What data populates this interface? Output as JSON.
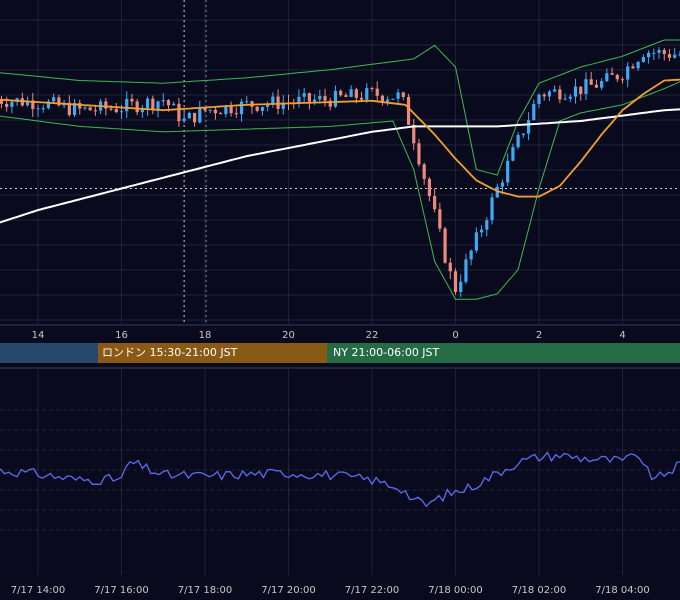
{
  "colors": {
    "background": "#0a0a1e",
    "grid": "#1e2436",
    "candle_up": "#3fa9f5",
    "candle_down": "#ef8a7a",
    "bollinger": "#3fb950",
    "ma_short": "#f0a030",
    "ma_long": "#ffffff",
    "oscillator": "#5b6cf0",
    "session_tokyo": "#27496d",
    "session_london": "#8a5a14",
    "session_ny": "#256b45"
  },
  "sessions": [
    {
      "label": "",
      "color_key": "session_tokyo"
    },
    {
      "label": "ロンドン 15:30-21:00 JST",
      "color_key": "session_london"
    },
    {
      "label": "NY 21:00-06:00 JST",
      "color_key": "session_ny"
    }
  ],
  "chart_data": [
    {
      "type": "candlestick",
      "x_unit": "hour",
      "x_ticks": [
        14,
        16,
        18,
        20,
        22,
        0,
        2,
        4
      ],
      "x_tick_labels": [
        "14",
        "16",
        "18",
        "20",
        "22",
        "0",
        "2",
        "4"
      ],
      "x_range": [
        13,
        30.2
      ],
      "y_range": [
        0,
        100
      ],
      "y_scale": "relative price level (no price axis printed)",
      "grid": true,
      "series": [
        {
          "kind": "price",
          "points": [
            [
              13,
              78
            ],
            [
              14,
              77
            ],
            [
              15,
              74
            ],
            [
              16,
              75
            ],
            [
              17,
              78
            ],
            [
              17.5,
              70
            ],
            [
              18,
              74
            ],
            [
              19,
              76
            ],
            [
              20,
              77
            ],
            [
              21,
              78
            ],
            [
              22,
              80
            ],
            [
              22.7,
              79
            ],
            [
              23,
              64
            ],
            [
              23.5,
              35
            ],
            [
              23.85,
              14
            ],
            [
              24,
              8
            ],
            [
              24.5,
              26
            ],
            [
              25,
              45
            ],
            [
              26,
              80
            ],
            [
              27,
              82
            ],
            [
              27.5,
              84
            ],
            [
              28,
              88
            ],
            [
              28.5,
              96
            ],
            [
              29,
              95
            ],
            [
              30.2,
              94
            ]
          ]
        },
        {
          "kind": "bollinger_upper",
          "points": [
            [
              13,
              88
            ],
            [
              15,
              85
            ],
            [
              17,
              84
            ],
            [
              19,
              86
            ],
            [
              21,
              89
            ],
            [
              22.5,
              92
            ],
            [
              23,
              93
            ],
            [
              23.5,
              98
            ],
            [
              24,
              90
            ],
            [
              24.5,
              52
            ],
            [
              25,
              50
            ],
            [
              25.5,
              70
            ],
            [
              26,
              84
            ],
            [
              27,
              90
            ],
            [
              28,
              94
            ],
            [
              29,
              100
            ],
            [
              30.2,
              100
            ]
          ]
        },
        {
          "kind": "bollinger_lower",
          "points": [
            [
              13,
              72
            ],
            [
              15,
              68
            ],
            [
              17,
              66
            ],
            [
              19,
              67
            ],
            [
              21,
              68
            ],
            [
              22.5,
              70
            ],
            [
              23,
              52
            ],
            [
              23.5,
              18
            ],
            [
              24,
              4
            ],
            [
              24.5,
              4
            ],
            [
              25,
              6
            ],
            [
              25.5,
              15
            ],
            [
              26,
              45
            ],
            [
              26.5,
              70
            ],
            [
              27,
              73
            ],
            [
              28,
              76
            ],
            [
              29,
              82
            ],
            [
              30.2,
              90
            ]
          ]
        },
        {
          "kind": "ma_short",
          "points": [
            [
              13,
              78
            ],
            [
              15,
              76
            ],
            [
              16,
              75
            ],
            [
              17,
              74
            ],
            [
              18,
              75
            ],
            [
              19,
              76
            ],
            [
              20,
              76.5
            ],
            [
              21,
              77
            ],
            [
              22,
              77.5
            ],
            [
              22.8,
              76
            ],
            [
              23.5,
              65
            ],
            [
              24,
              56
            ],
            [
              24.5,
              48
            ],
            [
              25,
              44
            ],
            [
              25.5,
              42
            ],
            [
              26,
              42
            ],
            [
              26.5,
              46
            ],
            [
              27,
              55
            ],
            [
              27.5,
              65
            ],
            [
              28,
              74
            ],
            [
              28.5,
              80
            ],
            [
              29,
              85
            ],
            [
              30.2,
              86
            ]
          ]
        },
        {
          "kind": "ma_long",
          "points": [
            [
              13,
              32
            ],
            [
              14,
              37
            ],
            [
              15,
              41
            ],
            [
              16,
              45
            ],
            [
              17,
              49
            ],
            [
              18,
              53
            ],
            [
              19,
              57
            ],
            [
              20,
              60
            ],
            [
              21,
              63
            ],
            [
              22,
              66
            ],
            [
              23,
              68
            ],
            [
              24,
              68
            ],
            [
              25,
              68
            ],
            [
              26,
              69
            ],
            [
              27,
              70
            ],
            [
              28,
              72
            ],
            [
              29,
              74
            ],
            [
              30.2,
              75
            ]
          ]
        }
      ],
      "dotted_price_level": 45,
      "marker_x": 17.5
    },
    {
      "type": "line",
      "name": "oscillator",
      "x_tick_labels": [
        "7/17 14:00",
        "7/17 16:00",
        "7/17 18:00",
        "7/17 20:00",
        "7/17 22:00",
        "7/18 00:00",
        "7/18 02:00",
        "7/18 04:00"
      ],
      "x_ticks": [
        14,
        16,
        18,
        20,
        22,
        24,
        26,
        28
      ],
      "y_range": [
        0,
        100
      ],
      "grid": true,
      "points": [
        [
          13,
          50
        ],
        [
          14,
          46
        ],
        [
          15,
          40
        ],
        [
          16,
          41
        ],
        [
          16.2,
          58
        ],
        [
          17,
          45
        ],
        [
          18,
          44
        ],
        [
          19,
          46
        ],
        [
          20,
          47
        ],
        [
          21,
          45
        ],
        [
          22,
          40
        ],
        [
          22.7,
          32
        ],
        [
          23,
          20
        ],
        [
          23.3,
          15
        ],
        [
          23.8,
          26
        ],
        [
          24,
          28
        ],
        [
          24.3,
          32
        ],
        [
          24.7,
          40
        ],
        [
          25,
          47
        ],
        [
          25.5,
          58
        ],
        [
          26,
          63
        ],
        [
          26.5,
          65
        ],
        [
          27,
          62
        ],
        [
          28,
          59
        ],
        [
          28.4,
          65
        ],
        [
          28.6,
          48
        ],
        [
          28.8,
          40
        ],
        [
          29,
          46
        ],
        [
          29.5,
          58
        ],
        [
          30.2,
          57
        ]
      ]
    }
  ]
}
